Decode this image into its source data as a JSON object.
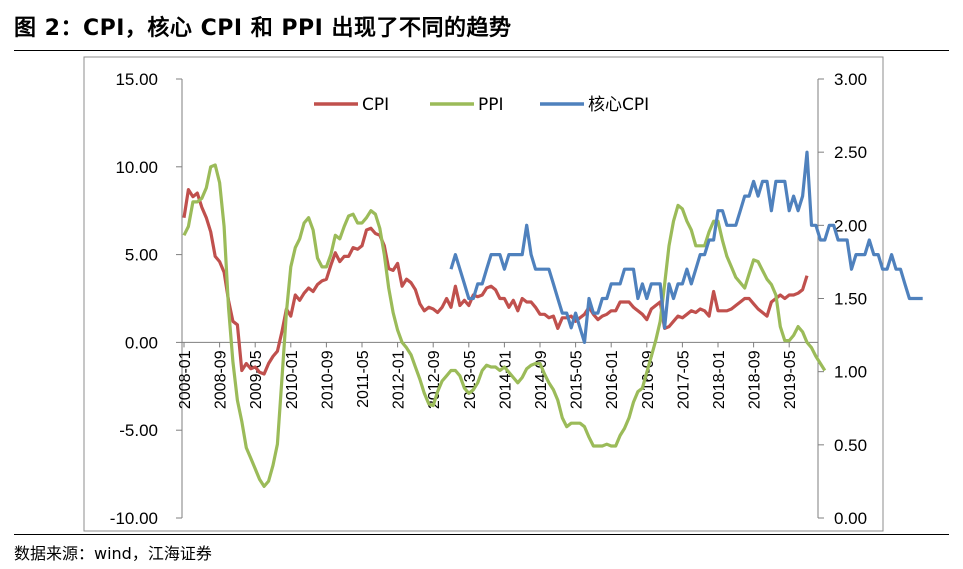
{
  "title": "图 2：CPI，核心 CPI 和 PPI 出现了不同的趋势",
  "source": "数据来源：wind，江海证券",
  "colors": {
    "CPI": "#c0504d",
    "PPI": "#9bbb59",
    "core": "#4f81bd",
    "axis": "#7f7f7f",
    "frame": "#7f7f7f"
  },
  "chart_data": {
    "type": "line",
    "title": "",
    "legend_placement": "top-center",
    "grid": false,
    "x_tick_labels": [
      "2008-01",
      "2008-09",
      "2009-05",
      "2010-01",
      "2010-09",
      "2011-05",
      "2012-01",
      "2012-09",
      "2013-05",
      "2014-01",
      "2014-09",
      "2015-05",
      "2016-01",
      "2016-09",
      "2017-05",
      "2018-01",
      "2018-09",
      "2019-05"
    ],
    "left_axis": {
      "ylim": [
        -10,
        15
      ],
      "ticks": [
        "-10.00",
        "-5.00",
        "0.00",
        "5.00",
        "10.00",
        "15.00"
      ]
    },
    "right_axis": {
      "ylim": [
        0,
        3
      ],
      "ticks": [
        "0.00",
        "0.50",
        "1.00",
        "1.50",
        "2.00",
        "2.50",
        "3.00"
      ]
    },
    "start_month": "2008-01",
    "series": [
      {
        "name": "CPI",
        "axis": "left",
        "values": [
          7.1,
          8.7,
          8.3,
          8.5,
          7.7,
          7.1,
          6.3,
          4.9,
          4.6,
          4.0,
          2.4,
          1.2,
          1.0,
          -1.6,
          -1.2,
          -1.5,
          -1.4,
          -1.7,
          -1.8,
          -1.2,
          -0.8,
          -0.5,
          0.6,
          1.9,
          1.5,
          2.7,
          2.4,
          2.8,
          3.1,
          2.9,
          3.3,
          3.5,
          3.6,
          4.4,
          5.1,
          4.6,
          4.9,
          4.9,
          5.4,
          5.3,
          5.5,
          6.4,
          6.5,
          6.2,
          6.1,
          5.5,
          4.2,
          4.1,
          4.5,
          3.2,
          3.6,
          3.4,
          3.0,
          2.2,
          1.8,
          2.0,
          1.9,
          1.7,
          2.0,
          2.5,
          2.0,
          3.2,
          2.1,
          2.4,
          2.1,
          2.7,
          2.6,
          2.7,
          3.1,
          3.2,
          3.0,
          2.5,
          2.5,
          2.0,
          2.4,
          1.8,
          2.5,
          2.3,
          2.3,
          2.0,
          1.6,
          1.6,
          1.4,
          1.5,
          0.8,
          1.4,
          1.4,
          1.5,
          1.2,
          1.4,
          1.6,
          2.0,
          1.6,
          1.3,
          1.5,
          1.6,
          1.8,
          1.8,
          2.3,
          2.3,
          2.3,
          2.0,
          1.8,
          1.6,
          1.3,
          1.9,
          2.1,
          2.3,
          0.8,
          0.9,
          1.2,
          1.5,
          1.4,
          1.6,
          1.8,
          1.7,
          1.9,
          1.8,
          1.5,
          2.9,
          1.8,
          1.8,
          1.8,
          1.9,
          2.1,
          2.3,
          2.5,
          2.5,
          2.2,
          1.9,
          1.7,
          1.5,
          2.3,
          2.5,
          2.7,
          2.5,
          2.7,
          2.7,
          2.8,
          3.0,
          3.8
        ]
      },
      {
        "name": "PPI",
        "axis": "left",
        "values": [
          6.1,
          6.6,
          8.0,
          8.0,
          8.2,
          8.8,
          10.0,
          10.1,
          9.1,
          6.6,
          2.0,
          -1.1,
          -3.3,
          -4.5,
          -6.0,
          -6.6,
          -7.2,
          -7.8,
          -8.2,
          -7.9,
          -7.0,
          -5.8,
          -2.1,
          1.7,
          4.3,
          5.4,
          5.9,
          6.8,
          7.1,
          6.4,
          4.8,
          4.3,
          4.3,
          5.0,
          6.1,
          5.9,
          6.6,
          7.2,
          7.3,
          6.8,
          6.8,
          7.1,
          7.5,
          7.3,
          6.5,
          5.0,
          3.1,
          1.7,
          0.7,
          0.0,
          -0.3,
          -0.7,
          -1.4,
          -2.1,
          -2.9,
          -3.5,
          -3.6,
          -2.8,
          -2.2,
          -1.9,
          -1.6,
          -1.6,
          -1.9,
          -2.6,
          -2.9,
          -2.7,
          -2.3,
          -1.6,
          -1.3,
          -1.4,
          -1.4,
          -1.6,
          -1.4,
          -1.7,
          -2.0,
          -2.3,
          -2.0,
          -1.5,
          -1.3,
          -1.2,
          -1.2,
          -1.8,
          -2.3,
          -2.7,
          -3.3,
          -4.3,
          -4.8,
          -4.6,
          -4.6,
          -4.6,
          -4.8,
          -5.4,
          -5.9,
          -5.9,
          -5.9,
          -5.8,
          -5.9,
          -5.9,
          -5.3,
          -4.9,
          -4.3,
          -3.4,
          -2.8,
          -2.6,
          -1.7,
          -0.8,
          0.1,
          1.2,
          3.3,
          5.5,
          6.9,
          7.8,
          7.6,
          6.9,
          6.4,
          5.5,
          5.5,
          5.5,
          6.3,
          6.9,
          6.9,
          5.8,
          4.9,
          4.3,
          3.7,
          3.4,
          3.1,
          3.9,
          4.7,
          4.6,
          4.1,
          3.6,
          3.3,
          2.7,
          0.9,
          0.1,
          0.1,
          0.4,
          0.9,
          0.6,
          0.0,
          -0.3,
          -0.8,
          -1.2,
          -1.6
        ]
      },
      {
        "name": "核心CPI",
        "axis": "right",
        "start_month": "2013-01",
        "values": [
          1.7,
          1.8,
          1.7,
          1.6,
          1.5,
          1.5,
          1.6,
          1.6,
          1.7,
          1.8,
          1.8,
          1.8,
          1.7,
          1.8,
          1.8,
          1.8,
          1.8,
          2.0,
          1.8,
          1.7,
          1.7,
          1.7,
          1.7,
          1.6,
          1.5,
          1.4,
          1.4,
          1.3,
          1.4,
          1.3,
          1.2,
          1.5,
          1.4,
          1.4,
          1.5,
          1.5,
          1.6,
          1.6,
          1.6,
          1.7,
          1.7,
          1.7,
          1.5,
          1.6,
          1.5,
          1.6,
          1.6,
          1.6,
          1.3,
          1.6,
          1.5,
          1.6,
          1.6,
          1.7,
          1.6,
          1.7,
          1.8,
          1.8,
          1.9,
          1.9,
          2.1,
          2.1,
          2.0,
          2.0,
          2.0,
          2.1,
          2.2,
          2.2,
          2.3,
          2.2,
          2.3,
          2.3,
          2.1,
          2.3,
          2.3,
          2.3,
          2.1,
          2.2,
          2.1,
          2.2,
          2.5,
          2.0,
          2.0,
          1.9,
          1.9,
          2.0,
          2.0,
          1.9,
          1.9,
          1.9,
          1.7,
          1.8,
          1.8,
          1.8,
          1.9,
          1.8,
          1.8,
          1.7,
          1.7,
          1.8,
          1.7,
          1.7,
          1.6,
          1.5,
          1.5,
          1.5,
          1.5
        ]
      }
    ]
  }
}
